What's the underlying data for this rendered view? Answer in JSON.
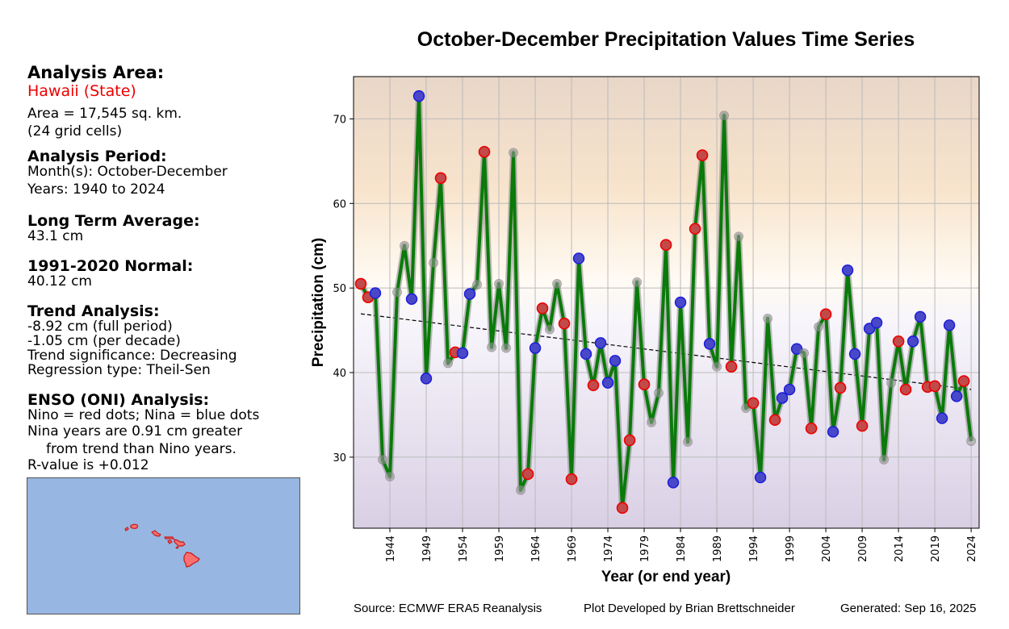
{
  "panel": {
    "area_heading": "Analysis Area:",
    "area_name": "Hawaii (State)",
    "area_size": "Area = 17,545 sq. km.",
    "grid_cells": "(24 grid cells)",
    "period_heading": "Analysis Period:",
    "months": "Month(s): October-December",
    "years": "Years: 1940 to 2024",
    "lta_heading": "Long Term Average:",
    "lta_value": "43.1 cm",
    "normal_heading": "1991-2020 Normal:",
    "normal_value": "40.12 cm",
    "trend_heading": "Trend Analysis:",
    "trend_full": "-8.92 cm (full period)",
    "trend_decade": "-1.05 cm (per decade)",
    "trend_significance": "Trend significance: Decreasing",
    "regression_type": "Regression type: Theil-Sen",
    "enso_heading": "ENSO (ONI) Analysis:",
    "enso_legend": "Nino = red dots; Nina = blue dots",
    "enso_line1": "Nina years are 0.91 cm greater",
    "enso_line2": "from trend than Nino years.",
    "enso_r": "R-value is +0.012"
  },
  "footer": {
    "source": "Source: ECMWF ERA5 Reanalysis",
    "developer": "Plot Developed by Brian Brettschneider",
    "generated": "Generated: Sep 16, 2025"
  },
  "colors": {
    "line": "#0a7a0a",
    "nino": "#ee0000",
    "nina": "#1a1add",
    "neutral": "#999999",
    "ocean": "#97b6e2",
    "land": "#f87070"
  },
  "chart_data": {
    "type": "line",
    "title": "October-December Precipitation Values Time Series",
    "xlabel": "Year (or end year)",
    "ylabel": "Precipitation (cm)",
    "xlim": [
      1939,
      2025.1
    ],
    "ylim": [
      21.6,
      75
    ],
    "xticks": [
      1944,
      1949,
      1954,
      1959,
      1964,
      1969,
      1974,
      1979,
      1984,
      1989,
      1994,
      1999,
      2004,
      2009,
      2014,
      2019,
      2024
    ],
    "yticks": [
      30,
      40,
      50,
      60,
      70
    ],
    "grid": true,
    "trend": {
      "type": "Theil-Sen",
      "start": [
        1940,
        46.95
      ],
      "end": [
        2024,
        38.0
      ]
    },
    "x": [
      1940,
      1941,
      1942,
      1943,
      1944,
      1945,
      1946,
      1947,
      1948,
      1949,
      1950,
      1951,
      1952,
      1953,
      1954,
      1955,
      1956,
      1957,
      1958,
      1959,
      1960,
      1961,
      1962,
      1963,
      1964,
      1965,
      1966,
      1967,
      1968,
      1969,
      1970,
      1971,
      1972,
      1973,
      1974,
      1975,
      1976,
      1977,
      1978,
      1979,
      1980,
      1981,
      1982,
      1983,
      1984,
      1985,
      1986,
      1987,
      1988,
      1989,
      1990,
      1991,
      1992,
      1993,
      1994,
      1995,
      1996,
      1997,
      1998,
      1999,
      2000,
      2001,
      2002,
      2003,
      2004,
      2005,
      2006,
      2007,
      2008,
      2009,
      2010,
      2011,
      2012,
      2013,
      2014,
      2015,
      2016,
      2017,
      2018,
      2019,
      2020,
      2021,
      2022,
      2023,
      2024
    ],
    "values": [
      50.5,
      48.9,
      49.4,
      29.7,
      27.7,
      49.5,
      55.0,
      48.7,
      72.7,
      39.3,
      53.0,
      63.0,
      41.1,
      42.4,
      42.3,
      49.3,
      50.4,
      66.1,
      43.0,
      50.5,
      42.9,
      66.0,
      26.1,
      28.0,
      42.9,
      47.6,
      45.1,
      50.5,
      45.8,
      27.4,
      53.5,
      42.2,
      38.5,
      43.5,
      38.8,
      41.4,
      24.0,
      32.0,
      50.7,
      38.6,
      34.1,
      37.6,
      55.1,
      27.0,
      48.3,
      31.8,
      57.0,
      65.7,
      43.4,
      40.7,
      70.4,
      40.7,
      56.1,
      35.8,
      36.4,
      27.6,
      46.4,
      34.4,
      37.0,
      38.0,
      42.8,
      42.3,
      33.4,
      45.4,
      46.9,
      33.0,
      38.2,
      52.1,
      42.2,
      33.7,
      45.2,
      45.9,
      29.7,
      38.8,
      43.7,
      38.0,
      43.7,
      46.6,
      38.3,
      38.4,
      34.6,
      45.6,
      37.2,
      39.0,
      31.9
    ],
    "enso": [
      "nino",
      "nino",
      "nina",
      "neutral",
      "neutral",
      "neutral",
      "neutral",
      "nina",
      "nina",
      "nina",
      "neutral",
      "nino",
      "neutral",
      "nino",
      "nina",
      "nina",
      "neutral",
      "nino",
      "neutral",
      "neutral",
      "neutral",
      "neutral",
      "neutral",
      "nino",
      "nina",
      "nino",
      "neutral",
      "neutral",
      "nino",
      "nino",
      "nina",
      "nina",
      "nino",
      "nina",
      "nina",
      "nina",
      "nino",
      "nino",
      "neutral",
      "nino",
      "neutral",
      "neutral",
      "nino",
      "nina",
      "nina",
      "neutral",
      "nino",
      "nino",
      "nina",
      "neutral",
      "neutral",
      "nino",
      "neutral",
      "neutral",
      "nino",
      "nina",
      "neutral",
      "nino",
      "nina",
      "nina",
      "nina",
      "neutral",
      "nino",
      "neutral",
      "nino",
      "nina",
      "nino",
      "nina",
      "nina",
      "nino",
      "nina",
      "nina",
      "neutral",
      "neutral",
      "nino",
      "nino",
      "nina",
      "nina",
      "nino",
      "nino",
      "nina",
      "nina",
      "nina",
      "nino",
      "neutral"
    ],
    "legend": [
      "Nino = red dots",
      "Nina = blue dots"
    ]
  }
}
